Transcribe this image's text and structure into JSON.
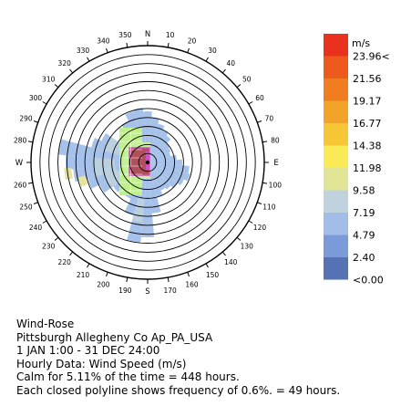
{
  "chart_data": {
    "type": "wind-rose",
    "title": "Wind-Rose",
    "station": "Pittsburgh Allegheny Co Ap_PA_USA",
    "period": "1 JAN 1:00 - 31 DEC 24:00",
    "data_description": "Hourly Data: Wind Speed (m/s)",
    "calm_note": "Calm for 5.11% of the time = 448 hours.",
    "ring_note": "Each closed polyline shows frequency of 0.6%. = 49 hours.",
    "ring_frequency_percent": 0.6,
    "ring_count": 13,
    "cardinal_labels": [
      "N",
      "E",
      "S",
      "W"
    ],
    "direction_labels": [
      10,
      20,
      30,
      40,
      50,
      60,
      70,
      80,
      100,
      110,
      120,
      130,
      140,
      150,
      160,
      170,
      190,
      200,
      210,
      220,
      230,
      240,
      250,
      260,
      280,
      290,
      300,
      310,
      320,
      330,
      340,
      350
    ],
    "legend": {
      "unit": "m/s",
      "labels": [
        "23.96<",
        "21.56",
        "19.17",
        "16.77",
        "14.38",
        "11.98",
        "9.58",
        "7.19",
        "4.79",
        "2.40",
        "<0.00"
      ],
      "colors": [
        "#e8321e",
        "#ee5a1e",
        "#f07e20",
        "#f2a32a",
        "#f6c635",
        "#f9ea56",
        "#e3e596",
        "#bfd2dd",
        "#a2bde8",
        "#7b9ad9",
        "#5572b5"
      ]
    },
    "speed_colors": {
      "very_light": "#a6c2ea",
      "light": "#bcd1e0",
      "moderate": "#e4e4a0",
      "lime": "#bff08c",
      "fresh": "#c9eea2",
      "strong": "#b1505a",
      "highlight": "#d24fc8"
    }
  }
}
